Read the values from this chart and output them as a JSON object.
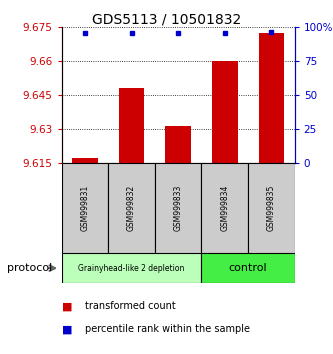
{
  "title": "GDS5113 / 10501832",
  "samples": [
    "GSM999831",
    "GSM999832",
    "GSM999833",
    "GSM999834",
    "GSM999835"
  ],
  "bar_values": [
    9.617,
    9.648,
    9.631,
    9.66,
    9.672
  ],
  "bar_base": 9.615,
  "percentile_values": [
    95,
    95,
    95,
    95,
    96
  ],
  "ylim_left": [
    9.615,
    9.675
  ],
  "ylim_right": [
    0,
    100
  ],
  "yticks_left": [
    9.615,
    9.63,
    9.645,
    9.66,
    9.675
  ],
  "yticks_right": [
    0,
    25,
    50,
    75,
    100
  ],
  "ytick_labels_right": [
    "0",
    "25",
    "50",
    "75",
    "100%"
  ],
  "bar_color": "#cc0000",
  "dot_color": "#0000cc",
  "groups": [
    {
      "label": "Grainyhead-like 2 depletion",
      "start": 0,
      "end": 3,
      "color": "#bbffbb"
    },
    {
      "label": "control",
      "start": 3,
      "end": 5,
      "color": "#44ee44"
    }
  ],
  "legend_items": [
    {
      "color": "#cc0000",
      "label": "transformed count"
    },
    {
      "color": "#0000cc",
      "label": "percentile rank within the sample"
    }
  ],
  "protocol_label": "protocol",
  "background_color": "#ffffff",
  "title_fontsize": 10,
  "tick_fontsize": 7.5,
  "sample_label_fontsize": 5.5
}
